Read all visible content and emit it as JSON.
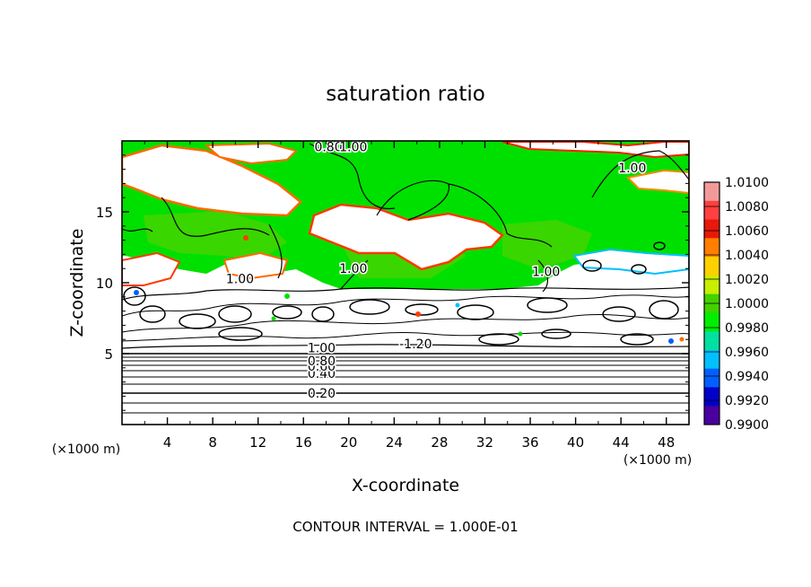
{
  "chart_data": {
    "type": "heatmap",
    "title": "saturation ratio",
    "xlabel": "X-coordinate",
    "ylabel": "Z-coordinate",
    "x_unit": "(×1000 m)",
    "x_unit_right": "(×1000 m)",
    "footer": "CONTOUR INTERVAL = 1.000E-01",
    "xlim": [
      0,
      50
    ],
    "ylim": [
      0,
      20
    ],
    "x_ticks": [
      4,
      8,
      12,
      16,
      20,
      24,
      28,
      32,
      36,
      40,
      44,
      48
    ],
    "y_ticks": [
      5,
      10,
      15
    ],
    "x_tick_labels": [
      "4",
      "8",
      "12",
      "16",
      "20",
      "24",
      "28",
      "32",
      "36",
      "40",
      "44",
      "48"
    ],
    "y_tick_labels": [
      "5",
      "10",
      "15"
    ],
    "colorbar": {
      "labels": [
        "1.0100",
        "1.0080",
        "1.0060",
        "1.0040",
        "1.0020",
        "1.0000",
        "0.9980",
        "0.9960",
        "0.9940",
        "0.9920",
        "0.9900"
      ],
      "colors": [
        "#f29a9a",
        "#ff4040",
        "#e8180a",
        "#ff7f00",
        "#ffd000",
        "#c8ee00",
        "#44d100",
        "#00ee00",
        "#00e0a0",
        "#00c0ff",
        "#0060ff",
        "#0000c8",
        "#4a00a0"
      ]
    },
    "contour_labels": [
      {
        "text": "0.20",
        "x": 17.6,
        "z": 2.2
      },
      {
        "text": "0.40",
        "x": 17.6,
        "z": 3.6
      },
      {
        "text": "0.60",
        "x": 17.6,
        "z": 4.1
      },
      {
        "text": "0.80",
        "x": 17.6,
        "z": 4.5
      },
      {
        "text": "1.00",
        "x": 17.6,
        "z": 5.4
      },
      {
        "text": "-1.20",
        "x": 25.9,
        "z": 5.7
      },
      {
        "text": "1.00",
        "x": 10.4,
        "z": 10.3
      },
      {
        "text": "1.00",
        "x": 20.4,
        "z": 11.0
      },
      {
        "text": "1.00",
        "x": 37.4,
        "z": 10.8
      },
      {
        "text": "1.00",
        "x": 45.0,
        "z": 18.1
      },
      {
        "text": "0.80",
        "x": 18.2,
        "z": 19.6
      },
      {
        "text": "1.00",
        "x": 20.4,
        "z": 19.6
      }
    ]
  }
}
